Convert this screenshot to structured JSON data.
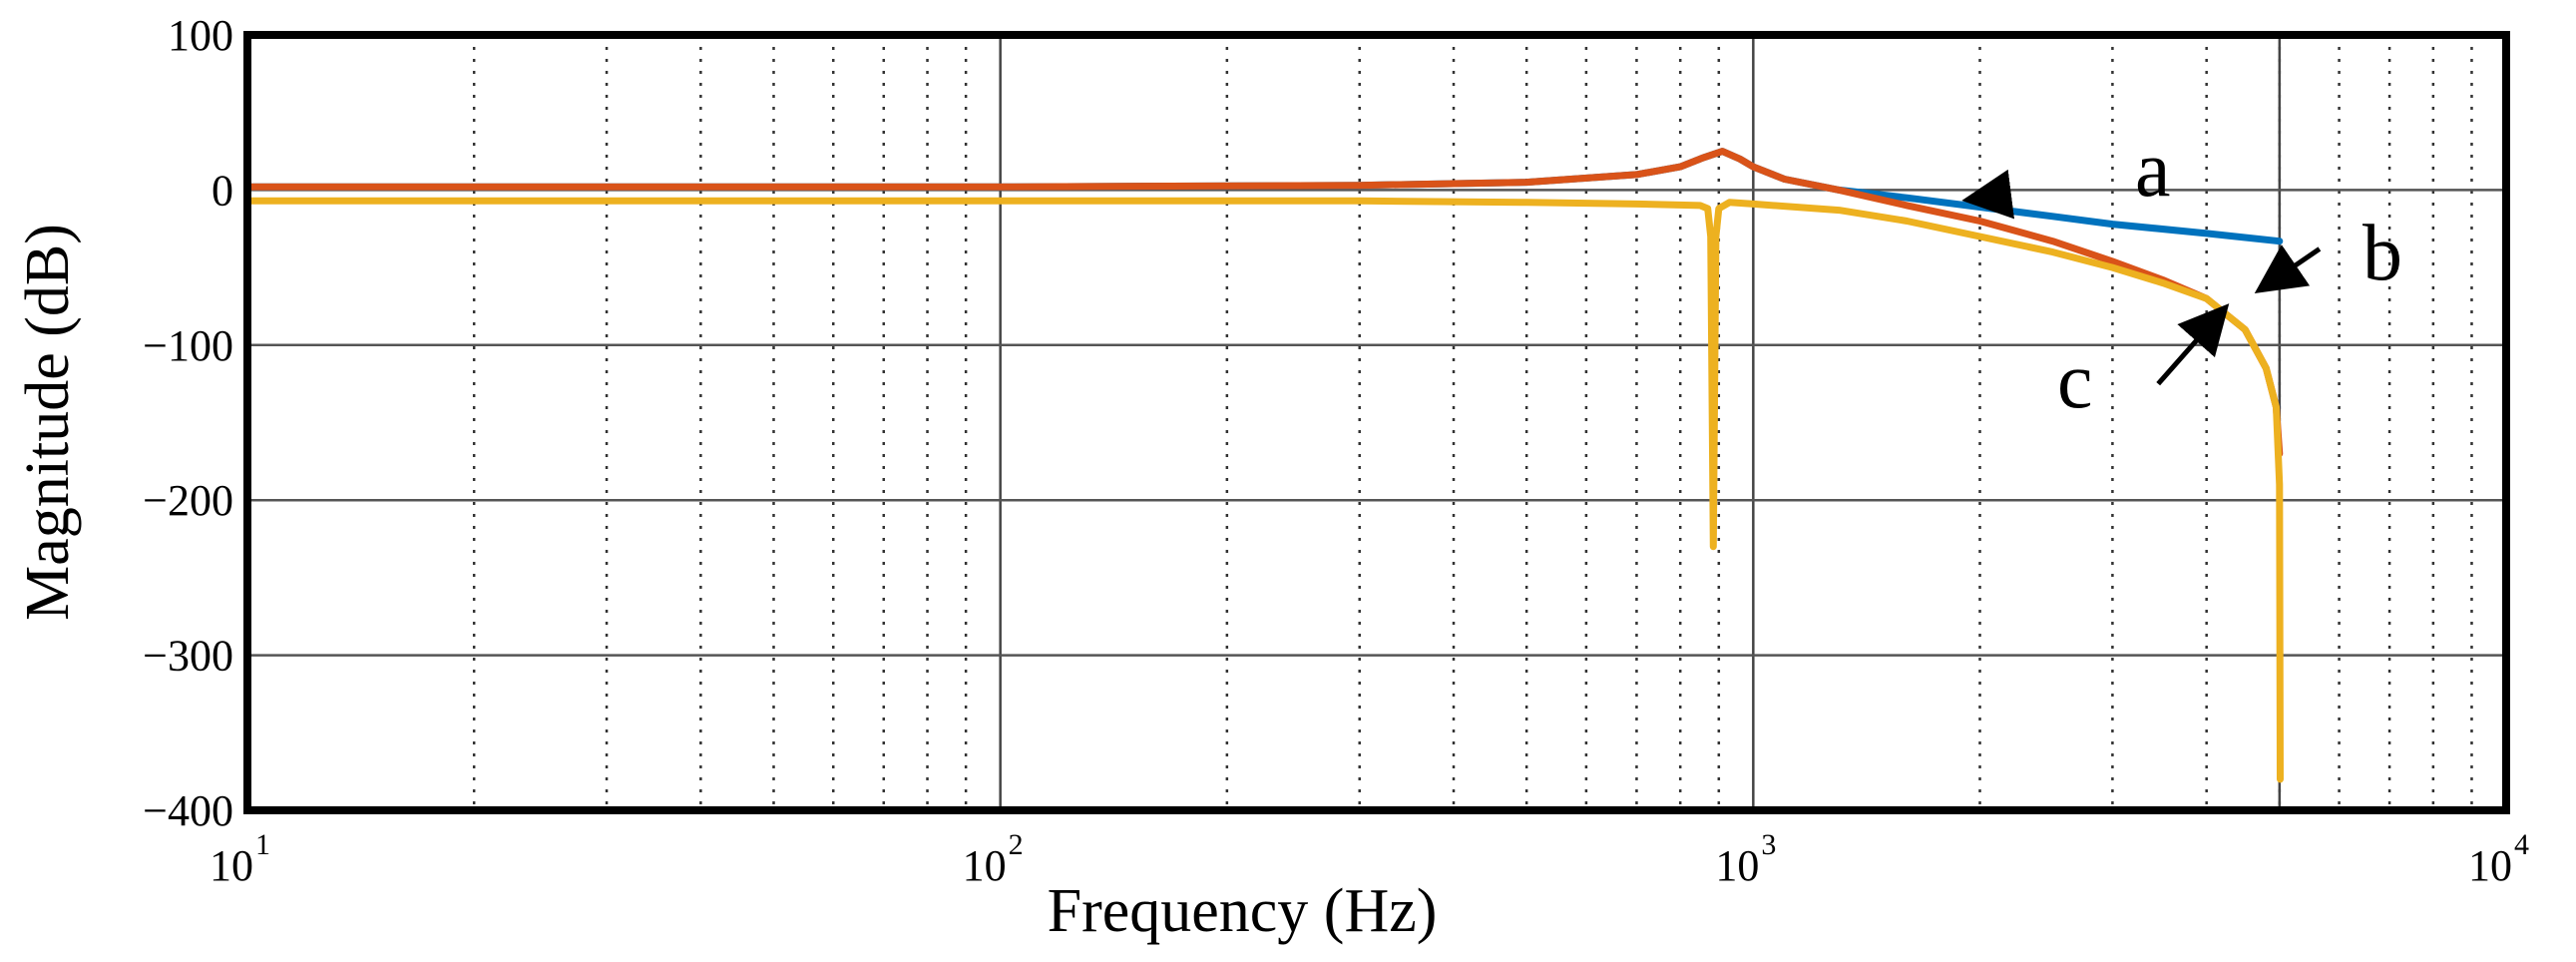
{
  "chart_data": {
    "type": "line",
    "xscale": "log",
    "xlim": [
      10,
      10000
    ],
    "ylim": [
      -400,
      100
    ],
    "xlabel": "Frequency  (Hz)",
    "ylabel": "Magnitude (dB)",
    "x_ticks": [
      {
        "base": "10",
        "exp": "1"
      },
      {
        "base": "10",
        "exp": "2"
      },
      {
        "base": "10",
        "exp": "3"
      },
      {
        "base": "10",
        "exp": "4"
      }
    ],
    "y_ticks": [
      {
        "value": 100,
        "label": "100"
      },
      {
        "value": 0,
        "label": "0"
      },
      {
        "value": -100,
        "label": "−100"
      },
      {
        "value": -200,
        "label": "−200"
      },
      {
        "value": -300,
        "label": "−300"
      },
      {
        "value": -400,
        "label": "−400"
      }
    ],
    "grid": true,
    "series": [
      {
        "name": "a",
        "color": "#0072bd",
        "points": [
          [
            10,
            2
          ],
          [
            100,
            2
          ],
          [
            300,
            3
          ],
          [
            500,
            5
          ],
          [
            700,
            10
          ],
          [
            800,
            15
          ],
          [
            860,
            21
          ],
          [
            910,
            25
          ],
          [
            960,
            20
          ],
          [
            1000,
            15
          ],
          [
            1100,
            7
          ],
          [
            1300,
            0
          ],
          [
            1600,
            -5
          ],
          [
            2000,
            -11
          ],
          [
            2500,
            -17
          ],
          [
            3000,
            -22
          ],
          [
            4000,
            -28
          ],
          [
            5000,
            -33
          ]
        ]
      },
      {
        "name": "b",
        "color": "#d95319",
        "points": [
          [
            10,
            2
          ],
          [
            100,
            2
          ],
          [
            300,
            3
          ],
          [
            500,
            5
          ],
          [
            700,
            10
          ],
          [
            800,
            15
          ],
          [
            860,
            21
          ],
          [
            910,
            25
          ],
          [
            960,
            20
          ],
          [
            1000,
            15
          ],
          [
            1100,
            7
          ],
          [
            1300,
            0
          ],
          [
            1600,
            -10
          ],
          [
            2000,
            -20
          ],
          [
            2500,
            -33
          ],
          [
            3000,
            -46
          ],
          [
            3500,
            -58
          ],
          [
            4000,
            -70
          ],
          [
            4500,
            -90
          ],
          [
            4800,
            -115
          ],
          [
            4950,
            -140
          ],
          [
            5000,
            -170
          ]
        ]
      },
      {
        "name": "c",
        "color": "#edb120",
        "points": [
          [
            10,
            -7
          ],
          [
            100,
            -7
          ],
          [
            300,
            -7
          ],
          [
            500,
            -8
          ],
          [
            700,
            -9
          ],
          [
            850,
            -10
          ],
          [
            870,
            -12
          ],
          [
            878,
            -30
          ],
          [
            885,
            -230
          ],
          [
            892,
            -30
          ],
          [
            900,
            -12
          ],
          [
            930,
            -8
          ],
          [
            1000,
            -9
          ],
          [
            1300,
            -13
          ],
          [
            1600,
            -20
          ],
          [
            2000,
            -30
          ],
          [
            2500,
            -40
          ],
          [
            3000,
            -50
          ],
          [
            3500,
            -60
          ],
          [
            4000,
            -70
          ],
          [
            4500,
            -90
          ],
          [
            4800,
            -115
          ],
          [
            4950,
            -140
          ],
          [
            5000,
            -190
          ],
          [
            5010,
            -380
          ]
        ]
      }
    ],
    "annotations": [
      {
        "label": "a",
        "tail": [
          2100,
          -4
        ],
        "head": [
          1950,
          -6
        ]
      },
      {
        "label": "b",
        "tail": [
          5650,
          -38
        ],
        "head": [
          4750,
          -63
        ]
      },
      {
        "label": "c",
        "tail": [
          3450,
          -125
        ],
        "head": [
          4200,
          -78
        ]
      }
    ]
  }
}
